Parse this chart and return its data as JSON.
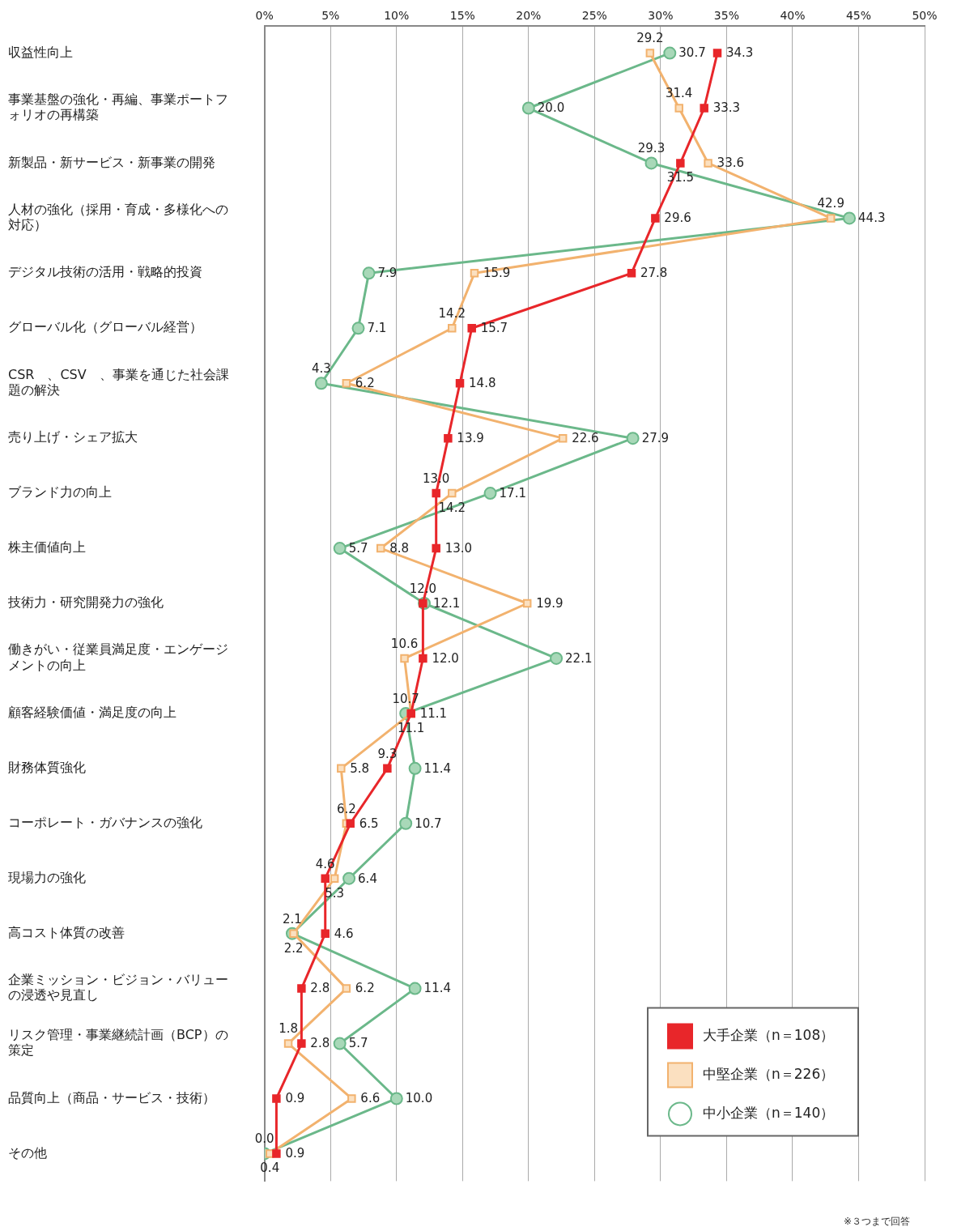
{
  "chart_data": {
    "type": "line",
    "orientation": "horizontal",
    "categories": [
      "収益性向上",
      "事業基盤の強化・再編、事業ポートフォリオの再構築",
      "新製品・新サービス・新事業の開発",
      "人材の強化（採用・育成・多様化への対応）",
      "デジタル技術の活用・戦略的投資",
      "グローバル化（グローバル経営）",
      "CSR　、CSV　、事業を通じた社会課題の解決",
      "売り上げ・シェア拡大",
      "ブランド力の向上",
      "株主価値向上",
      "技術力・研究開発力の強化",
      "働きがい・従業員満足度・エンゲージメントの向上",
      "顧客経験価値・満足度の向上",
      "財務体質強化",
      "コーポレート・ガバナンスの強化",
      "現場力の強化",
      "高コスト体質の改善",
      "企業ミッション・ビジョン・バリューの浸透や見直し",
      "リスク管理・事業継続計画（BCP）の策定",
      "品質向上（商品・サービス・技術）",
      "その他"
    ],
    "series": [
      {
        "name": "大手企業（n＝108）",
        "color": "#e8262a",
        "marker": "square",
        "values": [
          34.3,
          33.3,
          31.5,
          29.6,
          27.8,
          15.7,
          14.8,
          13.9,
          13.0,
          13.0,
          12.0,
          12.0,
          11.1,
          9.3,
          6.5,
          4.6,
          4.6,
          2.8,
          2.8,
          0.9,
          0.9
        ],
        "value_labels": [
          "34.3",
          "33.3",
          "31.5",
          "29.6",
          "27.8",
          "15.7",
          "14.8",
          "13.9",
          "13.0",
          "13.0",
          "12.0",
          "12.0",
          "11.1",
          "9.3",
          "6.5",
          "4.6",
          "4.6",
          "2.8",
          "2.8",
          "0.9",
          "0.9"
        ]
      },
      {
        "name": "中堅企業（n＝226）",
        "color": "#f2b26e",
        "marker": "square",
        "values": [
          29.2,
          31.4,
          33.6,
          42.9,
          15.9,
          14.2,
          6.2,
          22.6,
          14.2,
          8.8,
          19.9,
          10.6,
          11.1,
          5.8,
          6.2,
          5.3,
          2.2,
          6.2,
          1.8,
          6.6,
          0.4
        ],
        "value_labels": [
          "29.2",
          "31.4",
          "33.6",
          "42.9",
          "15.9",
          "14.2",
          "6.2",
          "22.6",
          "14.2",
          "8.8",
          "19.9",
          "10.6",
          "11.1",
          "5.8",
          "6.2",
          "5.3",
          "2.2",
          "6.2",
          "1.8",
          "6.6",
          "0.4"
        ]
      },
      {
        "name": "中小企業（n＝140）",
        "color": "#6bb88a",
        "marker": "circle",
        "values": [
          30.7,
          20.0,
          29.3,
          44.3,
          7.9,
          7.1,
          4.3,
          27.9,
          17.1,
          5.7,
          12.1,
          22.1,
          10.7,
          11.4,
          10.7,
          6.4,
          2.1,
          11.4,
          5.7,
          10.0,
          0.0
        ],
        "value_labels": [
          "30.7",
          "20.0",
          "29.3",
          "44.3",
          "7.9",
          "7.1",
          "4.3",
          "27.9",
          "17.1",
          "5.7",
          "12.1",
          "22.1",
          "10.7",
          "11.4",
          "10.7",
          "6.4",
          "2.1",
          "11.4",
          "5.7",
          "10.0",
          "0.0"
        ]
      }
    ],
    "xlim": [
      0,
      50
    ],
    "xticks": [
      {
        "value": 0,
        "label": "0%"
      },
      {
        "value": 5,
        "label": "5%"
      },
      {
        "value": 10,
        "label": "10%"
      },
      {
        "value": 15,
        "label": "15%"
      },
      {
        "value": 20,
        "label": "20%"
      },
      {
        "value": 25,
        "label": "25%"
      },
      {
        "value": 30,
        "label": "30%"
      },
      {
        "value": 35,
        "label": "35%"
      },
      {
        "value": 40,
        "label": "40%"
      },
      {
        "value": 45,
        "label": "45%"
      },
      {
        "value": 50,
        "label": "50%"
      }
    ],
    "grid": "x",
    "legend": "bottom right",
    "annotations": [
      "※３つまで回答"
    ]
  }
}
